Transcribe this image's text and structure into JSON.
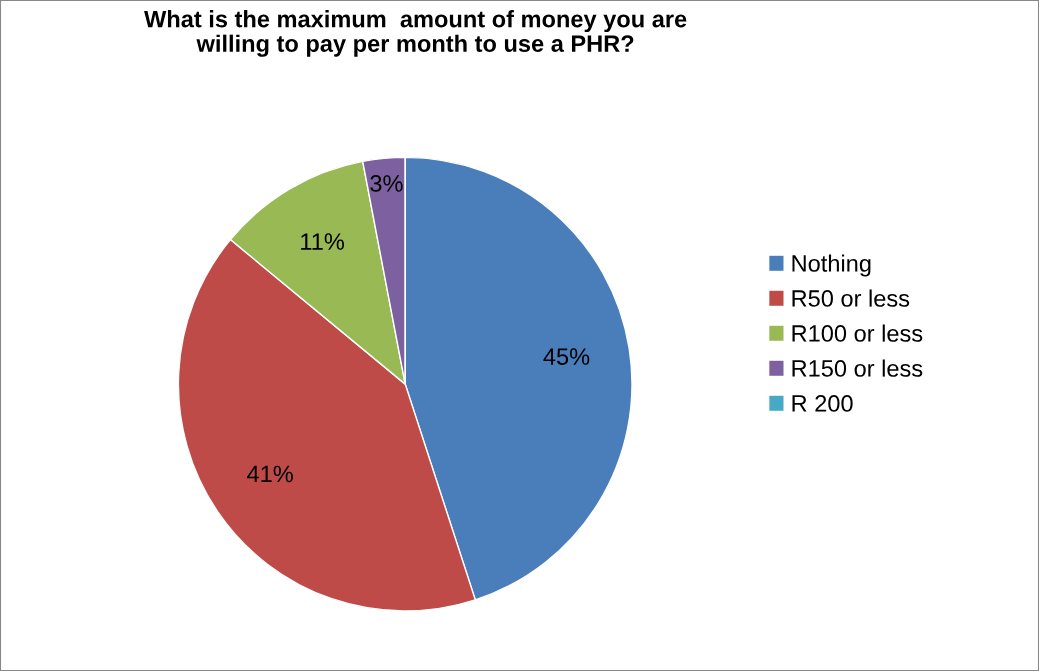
{
  "chart_data": {
    "type": "pie",
    "title": "What is the maximum  amount of money you are\nwilling to pay per month to use a PHR?",
    "categories": [
      "Nothing",
      "R50 or less",
      "R100 or less",
      "R150 or less",
      "R 200"
    ],
    "values": [
      45,
      41,
      11,
      3,
      0
    ],
    "colors": [
      "#4a7ebb",
      "#be4b48",
      "#98b954",
      "#7d60a0",
      "#46aac5"
    ],
    "value_labels": [
      "45%",
      "41%",
      "11%",
      "3%",
      null
    ],
    "legend": "right"
  }
}
